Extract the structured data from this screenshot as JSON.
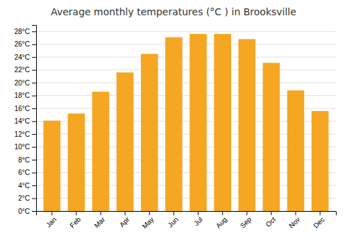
{
  "chart_data": {
    "type": "bar",
    "title": "Average monthly temperatures (°C ) in Brooksville",
    "categories": [
      "Jan",
      "Feb",
      "Mar",
      "Apr",
      "May",
      "Jun",
      "Jul",
      "Aug",
      "Sep",
      "Oct",
      "Nov",
      "Dec"
    ],
    "values": [
      14.1,
      15.2,
      18.6,
      21.6,
      24.5,
      27.1,
      27.6,
      27.6,
      26.8,
      23.1,
      18.8,
      15.6
    ],
    "color": "#F5A623",
    "ylim": [
      0,
      29
    ],
    "yticks": [
      {
        "value": 0,
        "label": "0°C"
      },
      {
        "value": 2,
        "label": "2°C"
      },
      {
        "value": 4,
        "label": "4°C"
      },
      {
        "value": 6,
        "label": "6°C"
      },
      {
        "value": 8,
        "label": "8°C"
      },
      {
        "value": 10,
        "label": "10°C"
      },
      {
        "value": 12,
        "label": "12°C"
      },
      {
        "value": 14,
        "label": "14°C"
      },
      {
        "value": 16,
        "label": "16°C"
      },
      {
        "value": 18,
        "label": "18°C"
      },
      {
        "value": 20,
        "label": "20°C"
      },
      {
        "value": 22,
        "label": "22°C"
      },
      {
        "value": 24,
        "label": "24°C"
      },
      {
        "value": 26,
        "label": "26°C"
      },
      {
        "value": 28,
        "label": "28°C"
      }
    ],
    "grid": true
  }
}
